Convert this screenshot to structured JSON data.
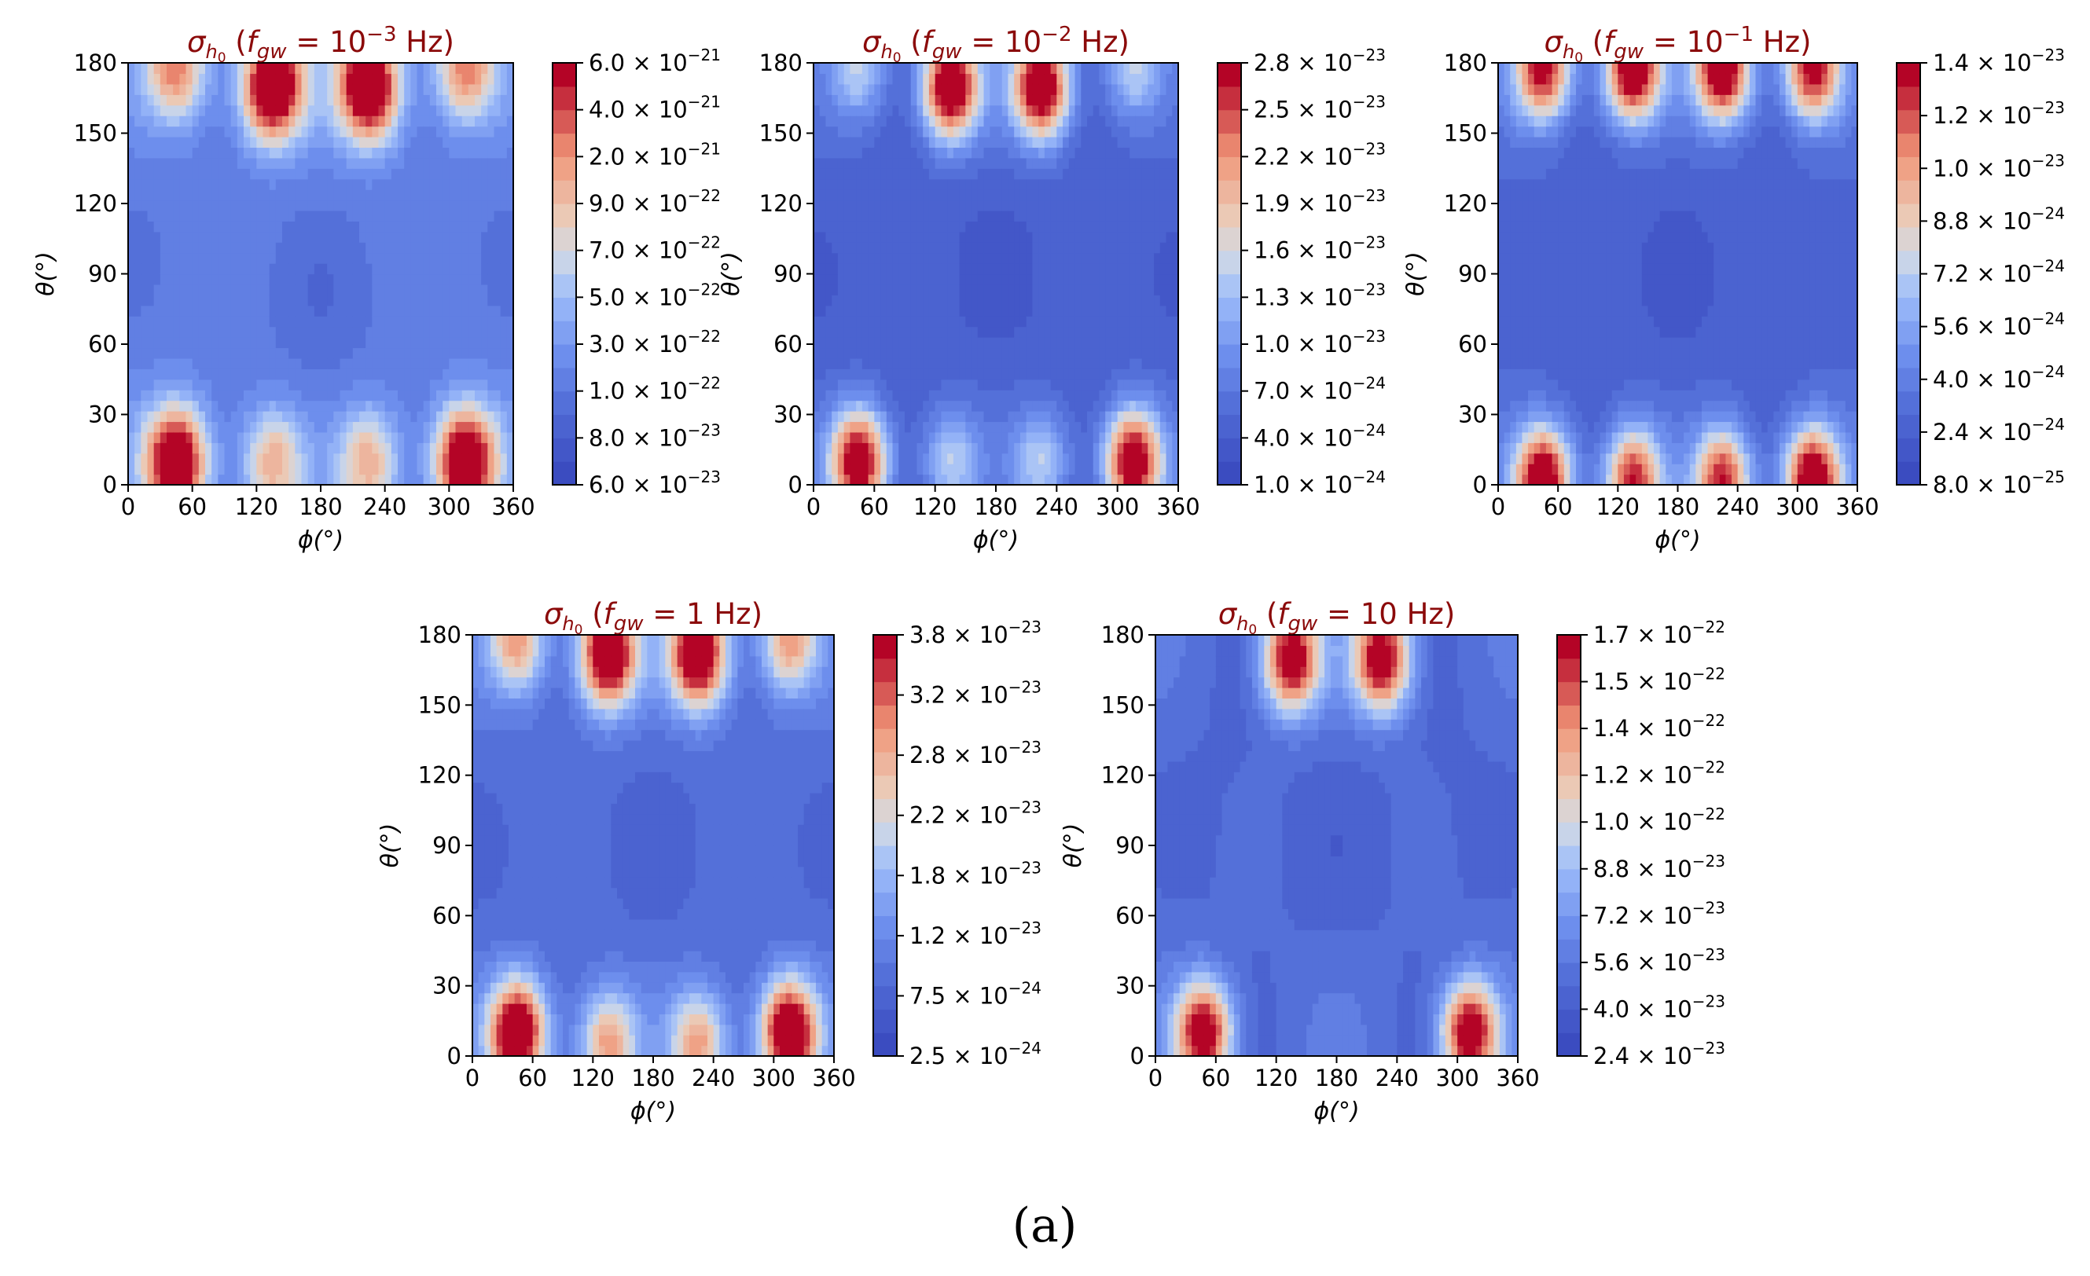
{
  "figure_label": "(a)",
  "chart_data": [
    {
      "type": "heatmap",
      "title": {
        "sigma": "σ",
        "sub": "h",
        "subsub": "0",
        "open": " (",
        "f": "f",
        "fsub": "gw",
        "eq": " = 10",
        "exp": "−3",
        "unit": " Hz)"
      },
      "xlabel": "ϕ(°)",
      "ylabel": "θ(°)",
      "xticks": [
        "0",
        "60",
        "120",
        "180",
        "240",
        "300",
        "360"
      ],
      "yticks": [
        "0",
        "30",
        "60",
        "90",
        "120",
        "150",
        "180"
      ],
      "xlim": [
        0,
        360
      ],
      "ylim": [
        0,
        180
      ],
      "colorbar_ticks": [
        "6.0 × 10",
        "8.0 × 10",
        "1.0 × 10",
        "3.0 × 10",
        "5.0 × 10",
        "7.0 × 10",
        "9.0 × 10",
        "2.0 × 10",
        "4.0 × 10",
        "6.0 × 10"
      ],
      "colorbar_exps": [
        "−23",
        "−23",
        "−22",
        "−22",
        "−22",
        "−22",
        "−22",
        "−21",
        "−21",
        "−21"
      ],
      "levels": 18,
      "field": {
        "base": 0.28,
        "hotspots": [
          [
            45,
            10,
            0.95
          ],
          [
            135,
            10,
            0.45
          ],
          [
            225,
            10,
            0.45
          ],
          [
            315,
            10,
            0.95
          ],
          [
            45,
            178,
            0.55
          ],
          [
            135,
            170,
            1.0
          ],
          [
            225,
            170,
            1.0
          ],
          [
            315,
            178,
            0.55
          ]
        ],
        "cold": [
          [
            180,
            80,
            0.12
          ],
          [
            0,
            100,
            0.08
          ],
          [
            360,
            100,
            0.08
          ]
        ]
      }
    },
    {
      "type": "heatmap",
      "title": {
        "sigma": "σ",
        "sub": "h",
        "subsub": "0",
        "open": " (",
        "f": "f",
        "fsub": "gw",
        "eq": " = 10",
        "exp": "−2",
        "unit": " Hz)"
      },
      "xlabel": "ϕ(°)",
      "ylabel": "θ(°)",
      "xticks": [
        "0",
        "60",
        "120",
        "180",
        "240",
        "300",
        "360"
      ],
      "yticks": [
        "0",
        "30",
        "60",
        "90",
        "120",
        "150",
        "180"
      ],
      "xlim": [
        0,
        360
      ],
      "ylim": [
        0,
        180
      ],
      "colorbar_ticks": [
        "1.0 × 10",
        "4.0 × 10",
        "7.0 × 10",
        "1.0 × 10",
        "1.3 × 10",
        "1.6 × 10",
        "1.9 × 10",
        "2.2 × 10",
        "2.5 × 10",
        "2.8 × 10"
      ],
      "colorbar_exps": [
        "−24",
        "−24",
        "−24",
        "−23",
        "−23",
        "−23",
        "−23",
        "−23",
        "−23",
        "−23"
      ],
      "levels": 18,
      "field": {
        "base": 0.16,
        "hotspots": [
          [
            45,
            10,
            0.95
          ],
          [
            135,
            10,
            0.35
          ],
          [
            225,
            10,
            0.35
          ],
          [
            315,
            10,
            0.95
          ],
          [
            45,
            178,
            0.35
          ],
          [
            135,
            170,
            1.0
          ],
          [
            225,
            170,
            1.0
          ],
          [
            315,
            178,
            0.35
          ]
        ],
        "cold": [
          [
            180,
            90,
            0.08
          ],
          [
            0,
            90,
            0.06
          ],
          [
            360,
            90,
            0.06
          ]
        ]
      }
    },
    {
      "type": "heatmap",
      "title": {
        "sigma": "σ",
        "sub": "h",
        "subsub": "0",
        "open": " (",
        "f": "f",
        "fsub": "gw",
        "eq": " = 10",
        "exp": "−1",
        "unit": " Hz)"
      },
      "xlabel": "ϕ(°)",
      "ylabel": "θ(°)",
      "xticks": [
        "0",
        "60",
        "120",
        "180",
        "240",
        "300",
        "360"
      ],
      "yticks": [
        "0",
        "30",
        "60",
        "90",
        "120",
        "150",
        "180"
      ],
      "xlim": [
        0,
        360
      ],
      "ylim": [
        0,
        180
      ],
      "colorbar_ticks": [
        "8.0 × 10",
        "2.4 × 10",
        "4.0 × 10",
        "5.6 × 10",
        "7.2 × 10",
        "8.8 × 10",
        "1.0 × 10",
        "1.2 × 10",
        "1.4 × 10"
      ],
      "colorbar_exps": [
        "−25",
        "−24",
        "−24",
        "−24",
        "−24",
        "−24",
        "−23",
        "−23",
        "−23"
      ],
      "levels": 18,
      "field": {
        "base": 0.17,
        "hotspots": [
          [
            45,
            2,
            1.0
          ],
          [
            135,
            2,
            0.8
          ],
          [
            225,
            2,
            0.8
          ],
          [
            315,
            2,
            1.0
          ],
          [
            45,
            178,
            0.85
          ],
          [
            135,
            178,
            1.0
          ],
          [
            225,
            178,
            1.0
          ],
          [
            315,
            178,
            0.85
          ]
        ],
        "cold": [
          [
            180,
            90,
            0.09
          ],
          [
            0,
            90,
            0.05
          ],
          [
            360,
            90,
            0.05
          ]
        ]
      }
    },
    {
      "type": "heatmap",
      "title": {
        "sigma": "σ",
        "sub": "h",
        "subsub": "0",
        "open": " (",
        "f": "f",
        "fsub": "gw",
        "eq": " = 1",
        "exp": "",
        "unit": " Hz)"
      },
      "xlabel": "ϕ(°)",
      "ylabel": "θ(°)",
      "xticks": [
        "0",
        "60",
        "120",
        "180",
        "240",
        "300",
        "360"
      ],
      "yticks": [
        "0",
        "30",
        "60",
        "90",
        "120",
        "150",
        "180"
      ],
      "xlim": [
        0,
        360
      ],
      "ylim": [
        0,
        180
      ],
      "colorbar_ticks": [
        "2.5 × 10",
        "7.5 × 10",
        "1.2 × 10",
        "1.8 × 10",
        "2.2 × 10",
        "2.8 × 10",
        "3.2 × 10",
        "3.8 × 10"
      ],
      "colorbar_exps": [
        "−24",
        "−24",
        "−23",
        "−23",
        "−23",
        "−23",
        "−23",
        "−23"
      ],
      "levels": 18,
      "field": {
        "base": 0.22,
        "hotspots": [
          [
            45,
            10,
            1.0
          ],
          [
            135,
            5,
            0.55
          ],
          [
            225,
            5,
            0.55
          ],
          [
            315,
            10,
            1.0
          ],
          [
            45,
            178,
            0.55
          ],
          [
            135,
            172,
            1.0
          ],
          [
            225,
            172,
            1.0
          ],
          [
            315,
            178,
            0.55
          ]
        ],
        "cold": [
          [
            180,
            90,
            0.1
          ],
          [
            0,
            90,
            0.08
          ],
          [
            360,
            90,
            0.08
          ]
        ]
      }
    },
    {
      "type": "heatmap",
      "title": {
        "sigma": "σ",
        "sub": "h",
        "subsub": "0",
        "open": " (",
        "f": "f",
        "fsub": "gw",
        "eq": " = 10",
        "exp": "",
        "unit": " Hz)"
      },
      "xlabel": "ϕ(°)",
      "ylabel": "θ(°)",
      "xticks": [
        "0",
        "60",
        "120",
        "180",
        "240",
        "300",
        "360"
      ],
      "yticks": [
        "0",
        "30",
        "60",
        "90",
        "120",
        "150",
        "180"
      ],
      "xlim": [
        0,
        360
      ],
      "ylim": [
        0,
        180
      ],
      "colorbar_ticks": [
        "2.4 × 10",
        "4.0 × 10",
        "5.6 × 10",
        "7.2 × 10",
        "8.8 × 10",
        "1.0 × 10",
        "1.2 × 10",
        "1.4 × 10",
        "1.5 × 10",
        "1.7 × 10"
      ],
      "colorbar_exps": [
        "−23",
        "−23",
        "−23",
        "−23",
        "−23",
        "−22",
        "−22",
        "−22",
        "−22",
        "−22"
      ],
      "levels": 18,
      "field": {
        "base": 0.2,
        "hotspots": [
          [
            48,
            10,
            0.9
          ],
          [
            312,
            10,
            0.9
          ],
          [
            135,
            170,
            0.9
          ],
          [
            225,
            170,
            0.9
          ]
        ],
        "cold": [
          [
            180,
            90,
            0.09
          ],
          [
            20,
            100,
            0.06
          ],
          [
            340,
            100,
            0.06
          ]
        ]
      }
    }
  ]
}
